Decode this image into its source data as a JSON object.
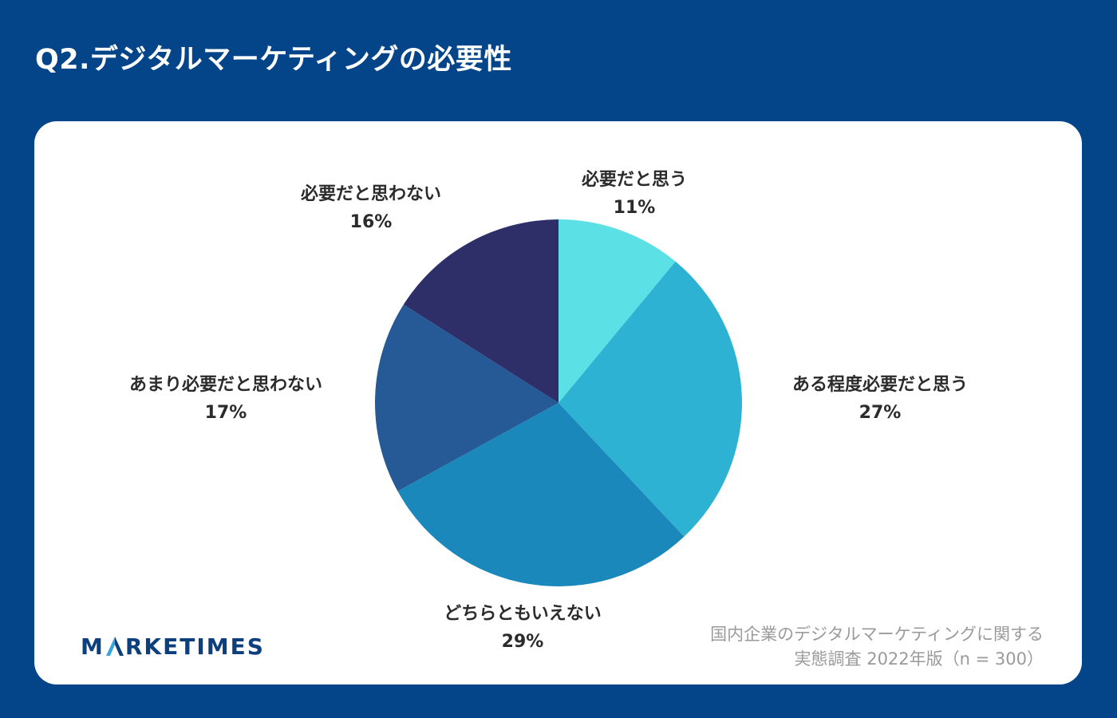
{
  "title": "Q2.デジタルマーケティングの必要性",
  "chart_data": {
    "type": "pie",
    "title": "",
    "start_angle_deg": 0,
    "direction": "clockwise",
    "slices": [
      {
        "label": "必要だと思う",
        "value": 11,
        "value_label": "11%",
        "color": "#5be0e6"
      },
      {
        "label": "ある程度必要だと思う",
        "value": 27,
        "value_label": "27%",
        "color": "#2eb2d3"
      },
      {
        "label": "どちらともいえない",
        "value": 29,
        "value_label": "29%",
        "color": "#1a88bb"
      },
      {
        "label": "あまり必要だと思わない",
        "value": 17,
        "value_label": "17%",
        "color": "#265a96"
      },
      {
        "label": "必要だと思わない",
        "value": 16,
        "value_label": "16%",
        "color": "#2e2f69"
      }
    ]
  },
  "logo": {
    "letter_a": "A",
    "text_before": "M",
    "text_after": "RKETIMES",
    "color": "#0d3f7d",
    "accent": "#3ba4dc"
  },
  "source": {
    "line1": "国内企業のデジタルマーケティングに関する",
    "line2": "実態調査 2022年版（n = 300）"
  }
}
